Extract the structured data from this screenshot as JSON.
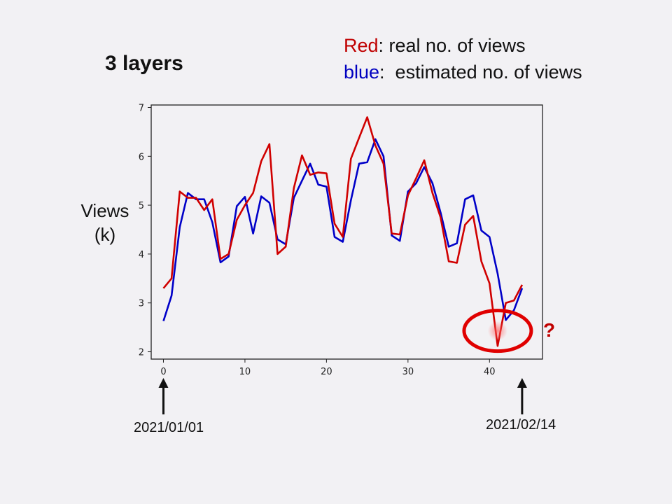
{
  "title": "3 layers",
  "legend": {
    "red_word": "Red",
    "red_text": ": real no. of views",
    "blue_word": "blue",
    "blue_text": ":  estimated no. of views"
  },
  "ylabel_line1": "Views",
  "ylabel_line2": "(k)",
  "start_date": "2021/01/01",
  "end_date": "2021/02/14",
  "anomaly_mark": "?",
  "colors": {
    "real": "#d00000",
    "estimated": "#0000c8",
    "highlight": "#e00000"
  },
  "chart_data": {
    "type": "line",
    "xlim": [
      -1.5,
      46.5
    ],
    "ylim": [
      1.85,
      7.05
    ],
    "xticks": [
      0,
      10,
      20,
      30,
      40
    ],
    "yticks": [
      2,
      3,
      4,
      5,
      6,
      7
    ],
    "series": [
      {
        "name": "Red",
        "x": [
          0,
          1,
          2,
          3,
          4,
          5,
          6,
          7,
          8,
          9,
          10,
          11,
          12,
          13,
          14,
          15,
          16,
          17,
          18,
          19,
          20,
          21,
          22,
          23,
          24,
          25,
          26,
          27,
          28,
          29,
          30,
          31,
          32,
          33,
          34,
          35,
          36,
          37,
          38,
          39,
          40,
          41,
          42,
          43,
          44
        ],
        "values": [
          3.3,
          3.5,
          5.28,
          5.15,
          5.15,
          4.9,
          5.12,
          3.9,
          4.0,
          4.7,
          5.0,
          5.25,
          5.9,
          6.25,
          4.0,
          4.15,
          5.35,
          6.02,
          5.62,
          5.67,
          5.65,
          4.62,
          4.35,
          5.95,
          6.38,
          6.8,
          6.22,
          5.85,
          4.42,
          4.4,
          5.2,
          5.55,
          5.92,
          5.25,
          4.75,
          3.85,
          3.82,
          4.6,
          4.78,
          3.85,
          3.4,
          2.12,
          3.0,
          3.05,
          3.37
        ]
      },
      {
        "name": "blue",
        "x": [
          0,
          1,
          2,
          3,
          4,
          5,
          6,
          7,
          8,
          9,
          10,
          11,
          12,
          13,
          14,
          15,
          16,
          17,
          18,
          19,
          20,
          21,
          22,
          23,
          24,
          25,
          26,
          27,
          28,
          29,
          30,
          31,
          32,
          33,
          34,
          35,
          36,
          37,
          38,
          39,
          40,
          41,
          42,
          43,
          44
        ],
        "values": [
          2.63,
          3.15,
          4.55,
          5.25,
          5.12,
          5.12,
          4.65,
          3.83,
          3.95,
          4.98,
          5.17,
          4.42,
          5.18,
          5.05,
          4.3,
          4.2,
          5.15,
          5.5,
          5.85,
          5.42,
          5.38,
          4.35,
          4.25,
          5.1,
          5.85,
          5.88,
          6.35,
          6.0,
          4.38,
          4.27,
          5.28,
          5.45,
          5.78,
          5.45,
          4.85,
          4.15,
          4.22,
          5.12,
          5.2,
          4.48,
          4.35,
          3.6,
          2.65,
          2.85,
          3.3
        ]
      }
    ],
    "highlight": {
      "x": 41,
      "y": 2.4
    }
  }
}
